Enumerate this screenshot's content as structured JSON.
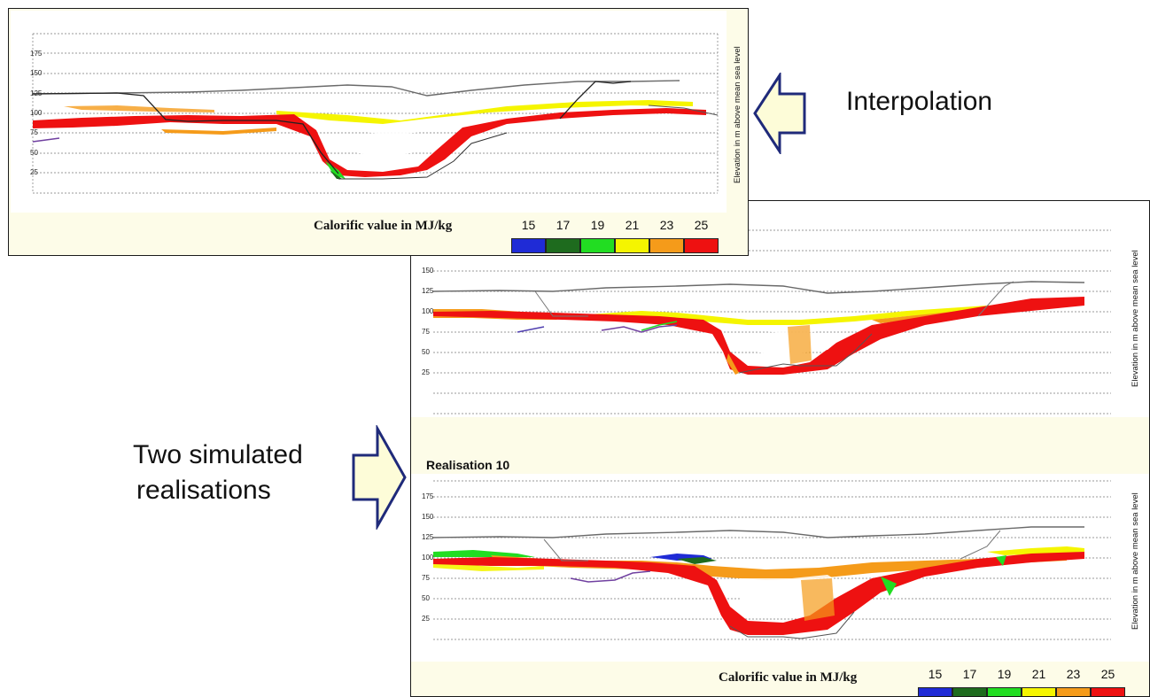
{
  "callouts": {
    "interpolation": "Interpolation",
    "simulated_line1": "Two simulated",
    "simulated_line2": "realisations"
  },
  "legend": {
    "title": "Calorific value in MJ/kg",
    "entries": [
      {
        "label": "15",
        "color": "#1f2bd6"
      },
      {
        "label": "17",
        "color": "#1e6b1e"
      },
      {
        "label": "19",
        "color": "#22dd22"
      },
      {
        "label": "21",
        "color": "#f5f500"
      },
      {
        "label": "23",
        "color": "#f59b1a"
      },
      {
        "label": "25",
        "color": "#ee1111"
      }
    ]
  },
  "panels": {
    "interpolation": {
      "ylabel": "Elevation in m above mean sea level",
      "ticks": [
        "175",
        "150",
        "125",
        "100",
        "75",
        "50",
        "25"
      ]
    },
    "realisation_a": {
      "ylabel": "Elevation in m above mean sea level",
      "ticks": [
        "150",
        "125",
        "100",
        "75",
        "50",
        "25"
      ]
    },
    "realisation_b": {
      "title": "Realisation 10",
      "ylabel": "Elevation in m above mean sea level",
      "ticks": [
        "175",
        "150",
        "125",
        "100",
        "75",
        "50",
        "25"
      ]
    }
  },
  "colors": {
    "panel_bg": "#fdfce8",
    "arrow_fill": "#fdfcd8",
    "arrow_stroke": "#1f2a7a",
    "grid": "#777777",
    "surface_line": "#6a6a6a"
  }
}
